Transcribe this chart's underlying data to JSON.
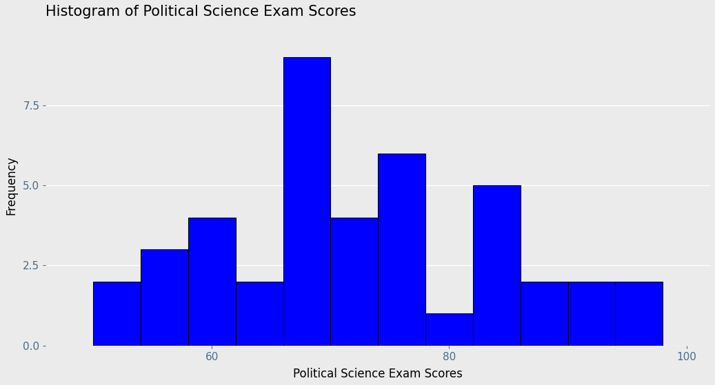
{
  "title": "Histogram of Political Science Exam Scores",
  "xlabel": "Political Science Exam Scores",
  "ylabel": "Frequency",
  "bin_edges": [
    50,
    54,
    58,
    62,
    66,
    70,
    74,
    78,
    82,
    86,
    90,
    94,
    98
  ],
  "frequencies": [
    2,
    3,
    4,
    2,
    9,
    4,
    6,
    1,
    5,
    2,
    2,
    2
  ],
  "bar_color": "#0000FF",
  "edge_color": "#000000",
  "edge_width": 0.8,
  "bg_color": "#EBEBEB",
  "plot_bg_color": "#EBEBEB",
  "grid_color": "#FFFFFF",
  "xlim": [
    46,
    102
  ],
  "ylim": [
    0,
    10
  ],
  "yticks": [
    0.0,
    2.5,
    5.0,
    7.5
  ],
  "xticks": [
    60,
    80,
    100
  ],
  "title_fontsize": 15,
  "axis_label_fontsize": 12,
  "tick_fontsize": 11,
  "tick_color": "#4D6B8A"
}
